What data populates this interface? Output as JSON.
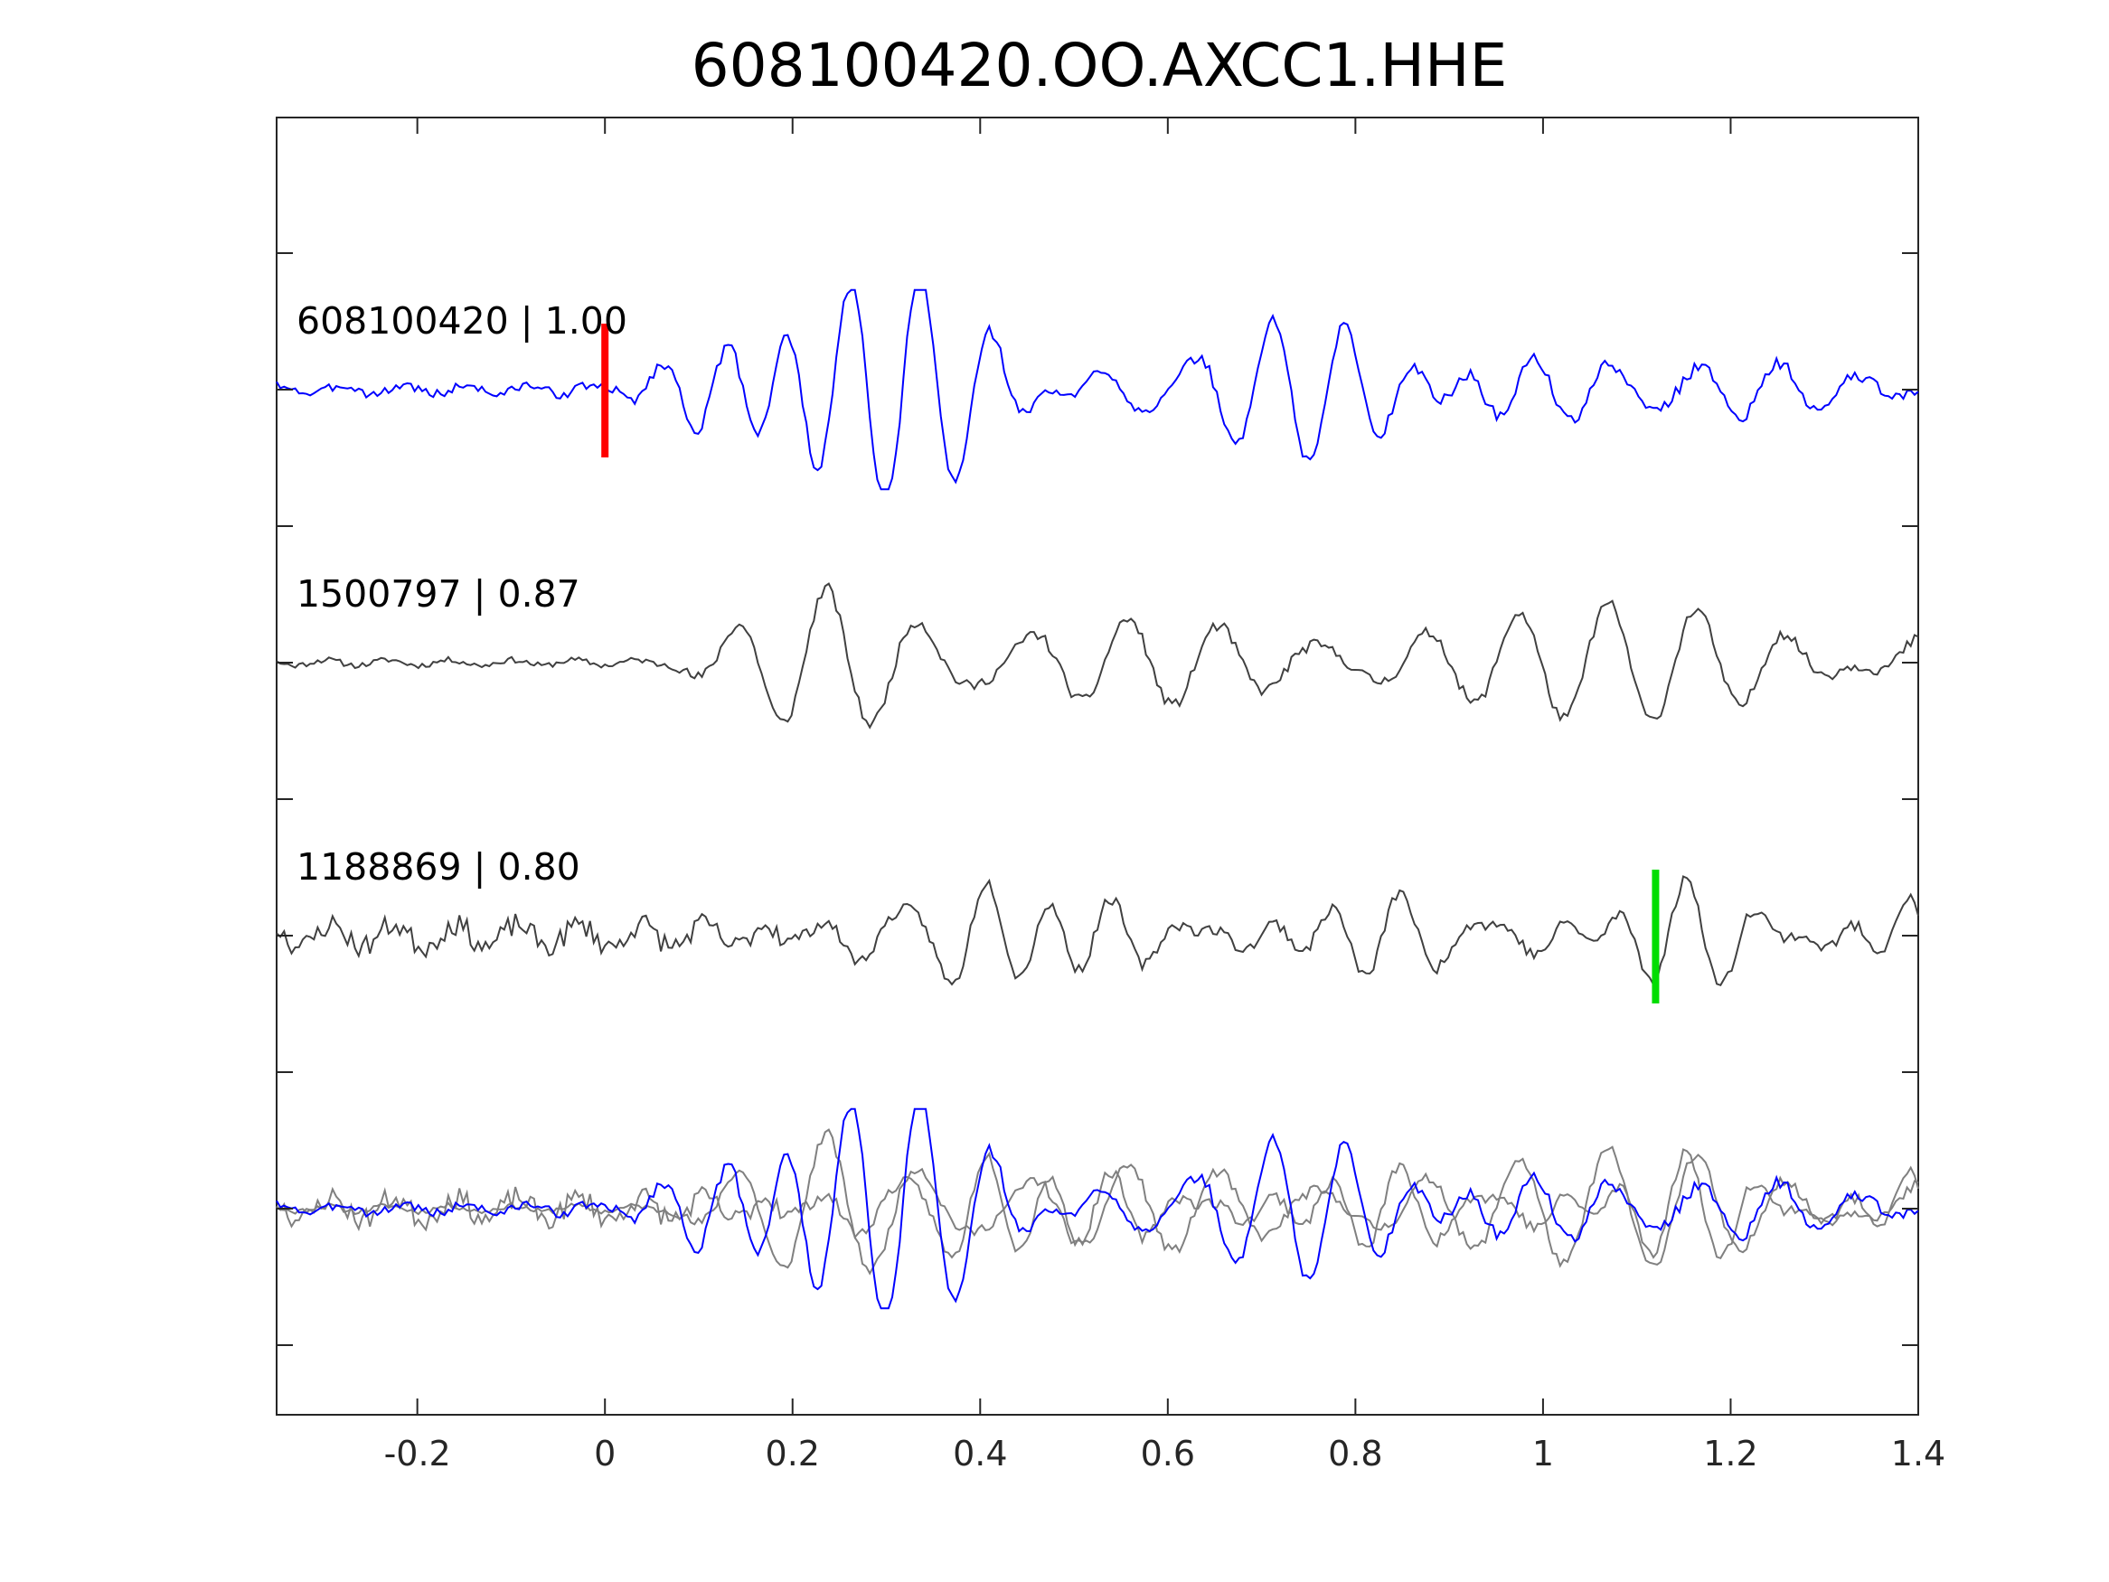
{
  "chart_data": {
    "type": "line",
    "title": "608100420.OO.AXCC1.HHE",
    "xlabel": "",
    "ylabel": "",
    "xlim": [
      -0.35,
      1.4
    ],
    "xticks": [
      -0.2,
      0,
      0.2,
      0.4,
      0.6,
      0.8,
      1,
      1.2,
      1.4
    ],
    "xtick_labels": [
      "-0.2",
      "0",
      "0.2",
      "0.4",
      "0.6",
      "0.8",
      "1",
      "1.2",
      "1.4"
    ],
    "grid": false,
    "legend": "none",
    "traces": [
      {
        "label": "608100420 | 1.00",
        "event_id": "608100420",
        "correlation": 1.0,
        "color": "#0000ff",
        "pick_marker": {
          "t": 0.0,
          "color": "#ff0000"
        },
        "onset": 0.0,
        "pre_amp": 0.08,
        "amp": 0.9,
        "seed": 3,
        "phase": 0.0
      },
      {
        "label": "1500797 | 0.87",
        "event_id": "1500797",
        "correlation": 0.87,
        "color": "#404040",
        "onset": 0.06,
        "pre_amp": 0.05,
        "amp": 0.85,
        "seed": 11,
        "phase": 1.3
      },
      {
        "label": "1188869 | 0.80",
        "event_id": "1188869",
        "correlation": 0.8,
        "color": "#404040",
        "pick_marker": {
          "t": 1.12,
          "color": "#00dd00"
        },
        "onset": 0.2,
        "pre_amp": 0.2,
        "amp": 0.85,
        "seed": 23,
        "phase": 2.1
      }
    ],
    "overlay": {
      "main_color": "#0000ff",
      "other_color": "#808080"
    }
  }
}
